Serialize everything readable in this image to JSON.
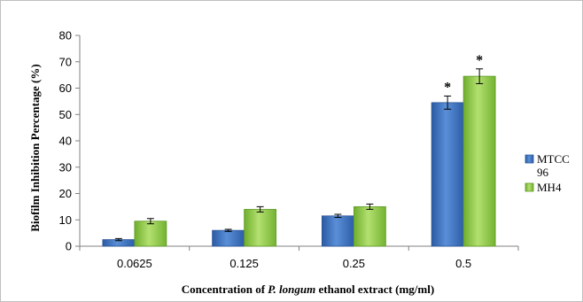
{
  "chart_data": {
    "type": "bar",
    "categories": [
      "0.0625",
      "0.125",
      "0.25",
      "0.5"
    ],
    "series": [
      {
        "name": "MTCC 96",
        "name_lines": [
          "MTCC",
          "96"
        ],
        "values": [
          2.5,
          6,
          11.5,
          54.5
        ],
        "errors": [
          0.4,
          0.4,
          0.6,
          2.5
        ],
        "color": "#3a6fbf",
        "significance": [
          "",
          "",
          "",
          "*"
        ]
      },
      {
        "name": "MH4",
        "values": [
          9.5,
          14,
          15,
          64.5
        ],
        "errors": [
          1,
          1,
          1,
          2.8
        ],
        "color": "#8cc63f",
        "significance": [
          "",
          "",
          "",
          "*"
        ]
      }
    ],
    "ylabel": "Biofilm Inhibition Percentage (%)",
    "xlabel": {
      "before": "Concentration of ",
      "italic": "P. longum",
      "after": " ethanol extract (mg/ml)"
    },
    "yticks": [
      "0",
      "10",
      "20",
      "30",
      "40",
      "50",
      "60",
      "70",
      "80"
    ],
    "ylim": [
      0,
      80
    ],
    "grid": false,
    "legend_position": "right"
  }
}
